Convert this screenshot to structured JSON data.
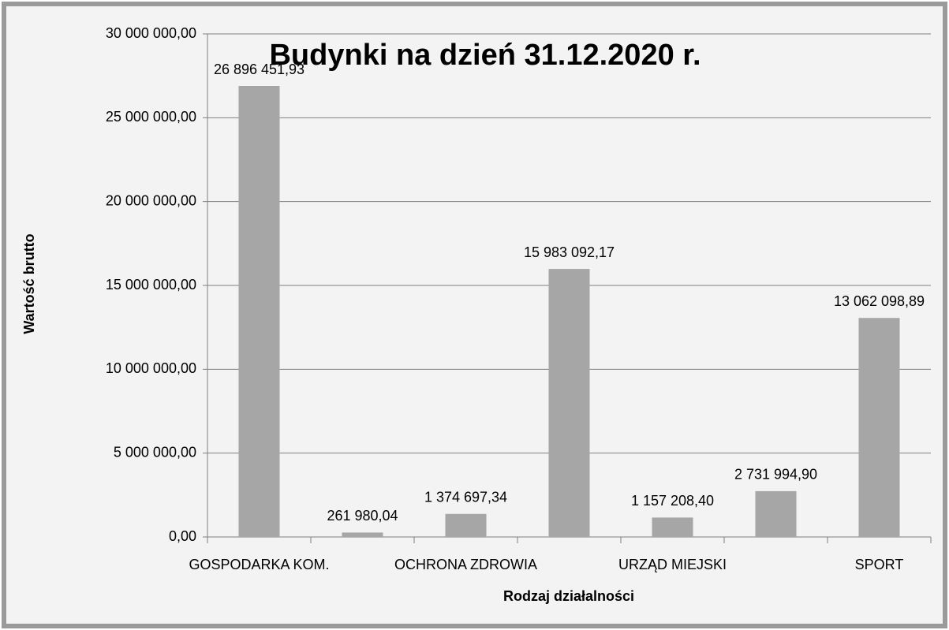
{
  "chart_data": {
    "type": "bar",
    "title": "Budynki na dzień 31.12.2020 r.",
    "x_label": "Rodzaj działalności",
    "y_label": "Wartość brutto",
    "categories": [
      "GOSPODARKA KOM.",
      null,
      "OCHRONA ZDROWIA",
      null,
      "URZĄD MIEJSKI",
      null,
      "SPORT"
    ],
    "values": [
      26896451.93,
      261980.04,
      1374697.34,
      15983092.17,
      1157208.4,
      2731994.9,
      13062098.89
    ],
    "value_labels": [
      "26 896 451,93",
      "261 980,04",
      "1 374 697,34",
      "15 983 092,17",
      "1 157 208,40",
      "2 731 994,90",
      "13 062 098,89"
    ],
    "color": "#a6a6a6",
    "ylim": [
      0,
      30000000
    ],
    "yticks": [
      {
        "value": 0,
        "label": "0,00"
      },
      {
        "value": 5000000,
        "label": "5 000 000,00"
      },
      {
        "value": 10000000,
        "label": "10 000 000,00"
      },
      {
        "value": 15000000,
        "label": "15 000 000,00"
      },
      {
        "value": 20000000,
        "label": "20 000 000,00"
      },
      {
        "value": 25000000,
        "label": "25 000 000,00"
      },
      {
        "value": 30000000,
        "label": "30 000 000,00"
      }
    ],
    "grid": true
  }
}
